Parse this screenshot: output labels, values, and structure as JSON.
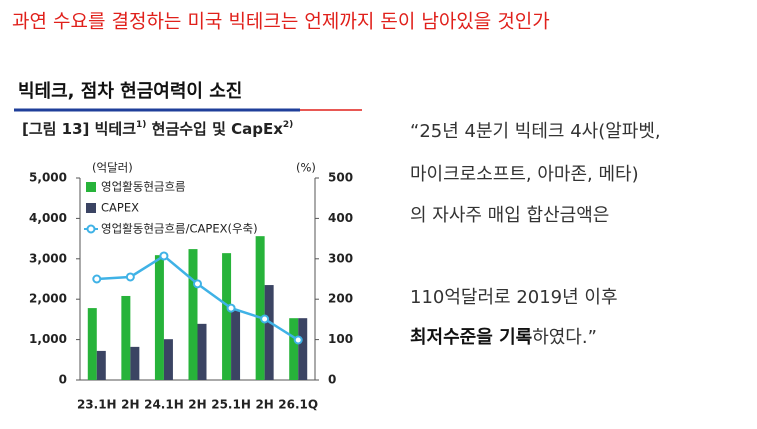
{
  "header": {
    "title": "과연 수요를 결정하는 미국 빅테크는 언제까지 돈이 남아있을 것인가",
    "section": "빅테크, 점차 현금여력이 소진"
  },
  "quote": {
    "lines": [
      "“25년 4분기 빅테크 4사(알파벳,",
      "마이크로소프트, 아마존, 메타)",
      "의 자사주 매입 합산금액은",
      "110억달러로 2019년 이후"
    ],
    "last_line": [
      "최저수준을 기록",
      "하였다.”"
    ]
  },
  "chart_data": {
    "type": "bar-line",
    "title_parts": [
      "[그림 13] 빅테크",
      "1)",
      " 현금수입 및 CapEx",
      "2)"
    ],
    "y_label": "(억달러)",
    "y2_label": "(%)",
    "categories": [
      "23.1H",
      "2H",
      "24.1H",
      "2H",
      "25.1H",
      "2H",
      "26.1Q"
    ],
    "series": [
      {
        "name": "영업활동현금흐름",
        "color": "#27b33a",
        "values": [
          1780,
          2080,
          3090,
          3240,
          3140,
          3560,
          1530
        ]
      },
      {
        "name": "CAPEX",
        "color": "#3b4463",
        "values": [
          720,
          820,
          1010,
          1390,
          1730,
          2350,
          1530
        ]
      },
      {
        "name": "영업활동현금흐름/CAPEX(우축)",
        "color": "#3fb2e6",
        "axis": "y2",
        "values": [
          250,
          255,
          307,
          238,
          178,
          151,
          99
        ]
      }
    ],
    "ylim": [
      0,
      5000
    ],
    "yticks": [
      0,
      {
        "value": 1000,
        "label": "1,000"
      },
      {
        "value": 2000,
        "label": "2,000"
      },
      {
        "value": 3000,
        "label": "3,000"
      },
      {
        "value": 4000,
        "label": "4,000"
      },
      {
        "value": 5000,
        "label": "5,000"
      }
    ],
    "y2lim": [
      0,
      500
    ],
    "y2ticks": [
      0,
      100,
      200,
      300,
      400,
      500
    ]
  }
}
